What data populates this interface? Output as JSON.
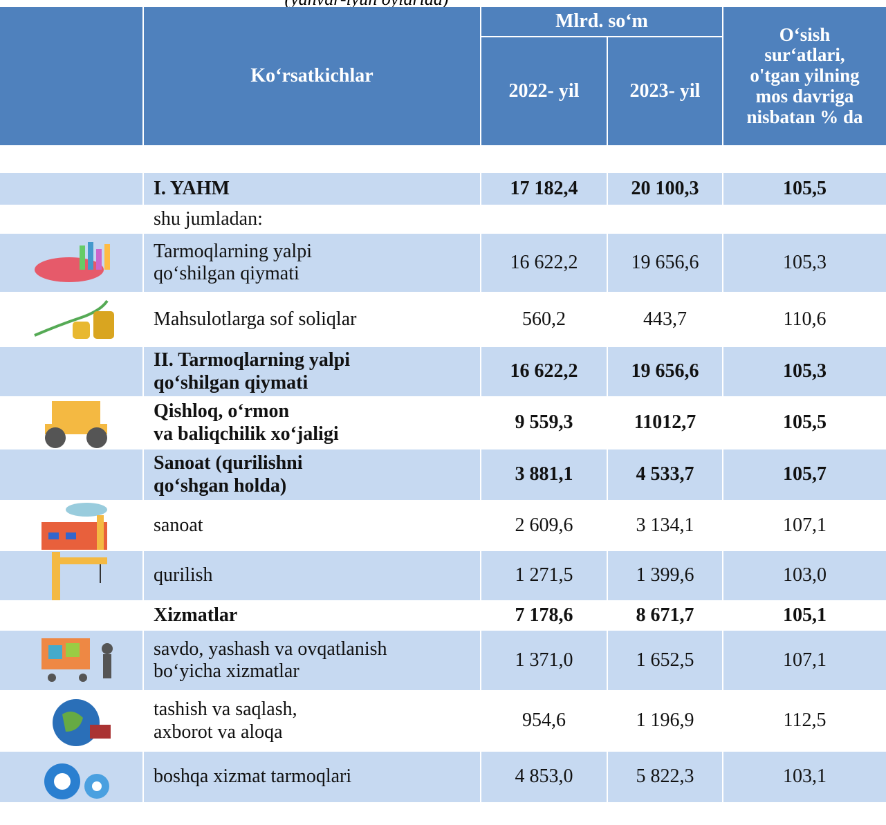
{
  "subtitle": "(yanvar-iyun oylarida)",
  "header": {
    "indicator": "Ko‘rsatkichlar",
    "unit": "Mlrd. so‘m",
    "year1": "2022- yil",
    "year2": "2023- yil",
    "growth": "O‘sish\nsur‘atlari,\no'tgan yilning\nmos davriga\nnisbatan % da"
  },
  "table": {
    "rows": [
      {
        "label": "I. YAHM",
        "v1": "17 182,4",
        "v2": "20 100,3",
        "g": "105,5",
        "bold": true,
        "shaded": true
      },
      {
        "label": "shu jumladan:",
        "bold": false,
        "shaded": false
      },
      {
        "label": " Tarmoqlarning yalpi\n qo‘shilgan qiymati",
        "v1": "16 622,2",
        "v2": "19 656,6",
        "g": "105,3",
        "bold": false,
        "shaded": true
      },
      {
        "label": "Mahsulotlarga sof soliqlar",
        "v1": "560,2",
        "v2": "443,7",
        "g": "110,6",
        "bold": false,
        "shaded": false
      },
      {
        "label": "II. Tarmoqlarning yalpi\nqo‘shilgan qiymati",
        "v1": "16 622,2",
        "v2": "19 656,6",
        "g": "105,3",
        "bold": true,
        "shaded": true
      },
      {
        "label": "Qishloq, o‘rmon\nva baliqchilik xo‘jaligi",
        "v1": "9 559,3",
        "v2": "11012,7",
        "g": "105,5",
        "bold": true,
        "shaded": false
      },
      {
        "label": "Sanoat (qurilishni\nqo‘shgan holda)",
        "v1": "3 881,1",
        "v2": "4 533,7",
        "g": "105,7",
        "bold": true,
        "shaded": true
      },
      {
        "label": "sanoat",
        "v1": "2 609,6",
        "v2": "3 134,1",
        "g": "107,1",
        "bold": false,
        "shaded": false
      },
      {
        "label": "qurilish",
        "v1": "1 271,5",
        "v2": "1 399,6",
        "g": "103,0",
        "bold": false,
        "shaded": true
      },
      {
        "label": "Xizmatlar",
        "v1": "7 178,6",
        "v2": "8 671,7",
        "g": "105,1",
        "bold": true,
        "shaded": false
      },
      {
        "label": "savdo, yashash va ovqatlanish\nbo‘yicha xizmatlar",
        "v1": "1 371,0",
        "v2": "1 652,5",
        "g": "107,1",
        "bold": false,
        "shaded": true
      },
      {
        "label": "tashish va saqlash,\naxborot va aloqa",
        "v1": "954,6",
        "v2": "1 196,9",
        "g": "112,5",
        "bold": false,
        "shaded": false
      },
      {
        "label": "boshqa xizmat tarmoqlari",
        "v1": "4 853,0",
        "v2": "5 822,3",
        "g": "103,1",
        "bold": false,
        "shaded": true
      }
    ]
  }
}
